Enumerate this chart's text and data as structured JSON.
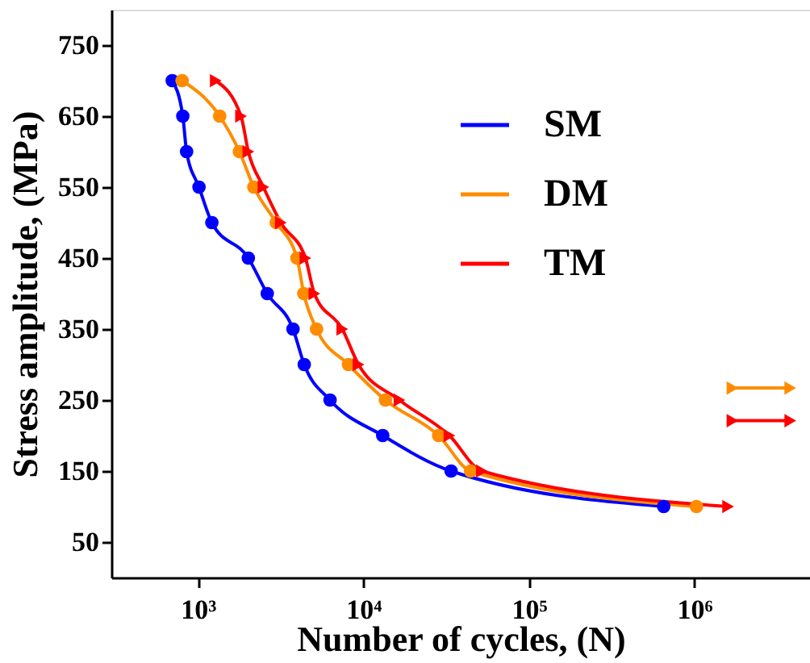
{
  "chart_data": {
    "type": "line",
    "xlabel": "Number of cycles, (N)",
    "ylabel": "Stress amplitude, (MPa)",
    "log": "x",
    "xlim": [
      300,
      5000000
    ],
    "ylim": [
      0,
      800
    ],
    "xticks": [
      {
        "value": 1000,
        "label": "10³"
      },
      {
        "value": 10000,
        "label": "10⁴"
      },
      {
        "value": 100000,
        "label": "10⁵"
      },
      {
        "value": 1000000,
        "label": "10⁶"
      }
    ],
    "yticks": [
      50,
      150,
      250,
      350,
      450,
      550,
      650,
      750
    ],
    "grid": false,
    "legend": "top right",
    "line_style": "solid",
    "series": [
      {
        "name": "SM",
        "color": "#0000ff",
        "marker": "circle",
        "x": [
          700,
          811,
          855,
          1016,
          1215,
          2018,
          2626,
          3758,
          4394,
          6293,
          13090,
          33880,
          653000
        ],
        "values": [
          700,
          650,
          600,
          550,
          500,
          450,
          400,
          350,
          300,
          250,
          200,
          150,
          100
        ]
      },
      {
        "name": "DM",
        "color": "#ff8c00",
        "marker": "circle",
        "x": [
          803,
          1355,
          1782,
          2178,
          2978,
          3971,
          4365,
          5215,
          8128,
          13590,
          28510,
          44460,
          1030000
        ],
        "values": [
          700,
          650,
          600,
          550,
          500,
          450,
          400,
          350,
          300,
          250,
          200,
          150,
          100
        ]
      },
      {
        "name": "TM",
        "color": "#ff0000",
        "marker": "triangle",
        "x": [
          1283,
          1823,
          2018,
          2490,
          3170,
          4467,
          5058,
          7460,
          9350,
          16520,
          33110,
          52000,
          1600000
        ],
        "values": [
          700,
          650,
          600,
          550,
          500,
          450,
          400,
          350,
          300,
          250,
          200,
          150,
          100
        ]
      },
      {
        "color": "#ff8c00",
        "marker": "triangle",
        "x": [
          1700000,
          3800000
        ],
        "values": [
          267,
          267
        ]
      },
      {
        "color": "#ff0000",
        "marker": "triangle",
        "x": [
          1700000,
          3800000
        ],
        "values": [
          221,
          221
        ]
      }
    ]
  }
}
